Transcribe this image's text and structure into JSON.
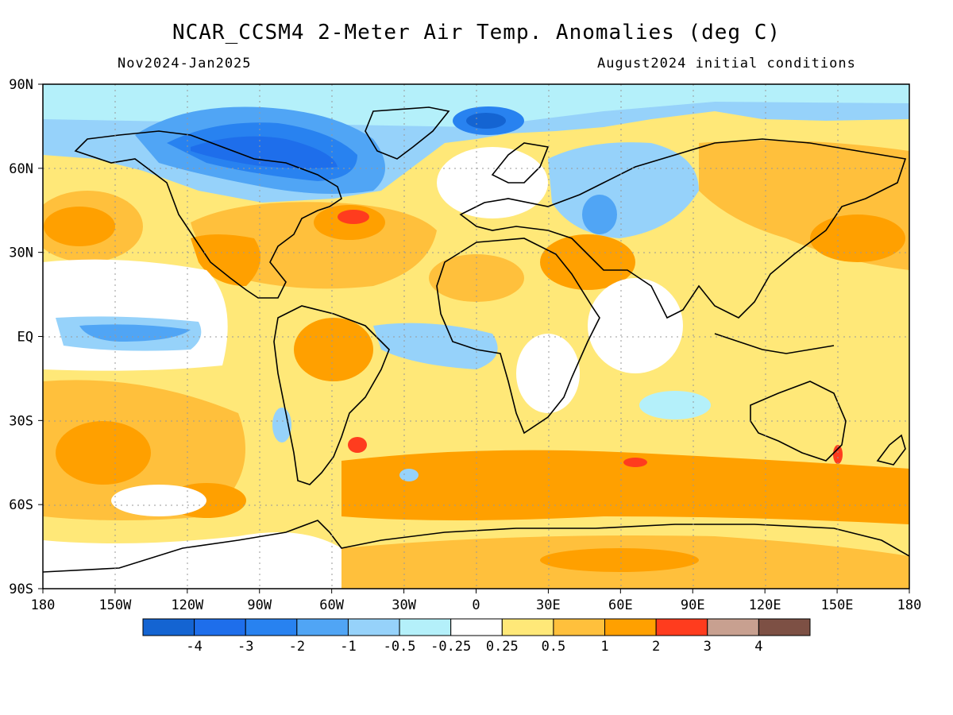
{
  "title": "NCAR_CCSM4 2-Meter Air Temp. Anomalies (deg C)",
  "period": "Nov2024-Jan2025",
  "initial_conditions": "August2024 initial conditions",
  "lon_ticks": [
    "180",
    "150W",
    "120W",
    "90W",
    "60W",
    "30W",
    "0",
    "30E",
    "60E",
    "90E",
    "120E",
    "150E",
    "180"
  ],
  "lat_ticks": [
    "90N",
    "60N",
    "30N",
    "EQ",
    "30S",
    "60S",
    "90S"
  ],
  "colorbar": {
    "colors": [
      "#1464d2",
      "#1e6eeb",
      "#2882f0",
      "#50a5f5",
      "#96d2fa",
      "#b4f0fa",
      "#ffffff",
      "#ffe878",
      "#ffc03c",
      "#ffa000",
      "#ff3c1e",
      "#c8a090",
      "#7d5044"
    ],
    "labels": [
      "-4",
      "-3",
      "-2",
      "-1",
      "-0.5",
      "-0.25",
      "0.25",
      "0.5",
      "1",
      "2",
      "3",
      "4"
    ]
  }
}
